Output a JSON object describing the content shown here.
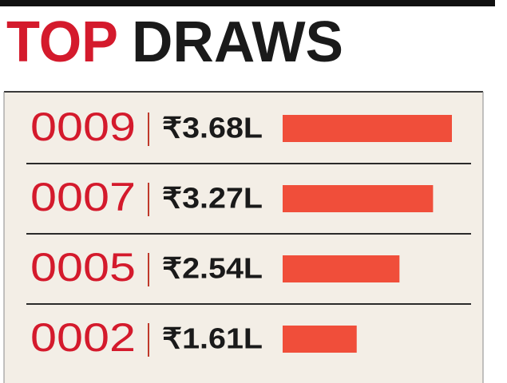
{
  "chart_data": {
    "type": "bar",
    "orientation": "horizontal",
    "title": [
      "TOP",
      "DRAWS"
    ],
    "categories": [
      "0009",
      "0007",
      "0005",
      "0002"
    ],
    "values": [
      3.68,
      3.27,
      2.54,
      1.61
    ],
    "value_labels": [
      "₹3.68L",
      "₹3.27L",
      "₹2.54L",
      "₹1.61L"
    ],
    "color": "#f04e3a",
    "category_color": "#d41a2c"
  }
}
